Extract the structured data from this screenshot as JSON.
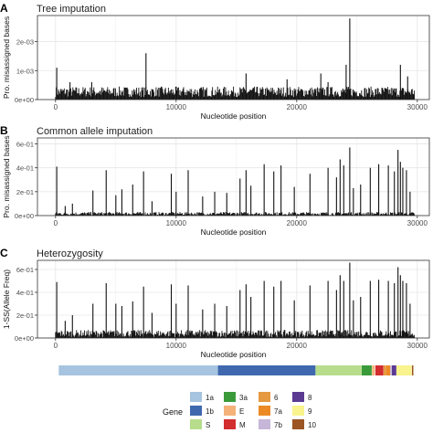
{
  "chart_data": [
    {
      "panel": "A",
      "type": "bar",
      "title": "Tree imputation",
      "xlabel": "Nucleotide position",
      "ylabel": "Pro. misassigned bases",
      "xlim": [
        -1500,
        31000
      ],
      "ylim": [
        0,
        0.0029
      ],
      "xticks": [
        0,
        10000,
        20000,
        30000
      ],
      "xtick_labels": [
        "0",
        "10000",
        "20000",
        "30000"
      ],
      "yticks": [
        0,
        0.001,
        0.002
      ],
      "ytick_labels": [
        "0e+00",
        "1e-03",
        "2e-03"
      ],
      "grid": true,
      "baseline": 0.0003,
      "noise_max": 0.00045,
      "peaks": [
        {
          "x": 100,
          "y": 0.0011
        },
        {
          "x": 1200,
          "y": 0.0006
        },
        {
          "x": 3000,
          "y": 0.0006
        },
        {
          "x": 7500,
          "y": 0.0016
        },
        {
          "x": 15800,
          "y": 0.0009
        },
        {
          "x": 19200,
          "y": 0.0007
        },
        {
          "x": 22000,
          "y": 0.0009
        },
        {
          "x": 22600,
          "y": 0.0006
        },
        {
          "x": 24100,
          "y": 0.0012
        },
        {
          "x": 24400,
          "y": 0.0028
        },
        {
          "x": 28600,
          "y": 0.0012
        },
        {
          "x": 29200,
          "y": 0.0008
        }
      ]
    },
    {
      "panel": "B",
      "type": "bar",
      "title": "Common allele imputation",
      "xlabel": "Nucleotide position",
      "ylabel": "Pro. misassigned bases",
      "xlim": [
        -1500,
        31000
      ],
      "ylim": [
        0,
        0.65
      ],
      "xticks": [
        0,
        10000,
        20000,
        30000
      ],
      "xtick_labels": [
        "0",
        "10000",
        "20000",
        "30000"
      ],
      "yticks": [
        0,
        0.2,
        0.4,
        0.6
      ],
      "ytick_labels": [
        "0e+00",
        "2e-01",
        "4e-01",
        "6e-01"
      ],
      "grid": true,
      "baseline": 0.01,
      "noise_max": 0.03,
      "peaks": [
        {
          "x": 100,
          "y": 0.41
        },
        {
          "x": 800,
          "y": 0.08
        },
        {
          "x": 1400,
          "y": 0.1
        },
        {
          "x": 3100,
          "y": 0.21
        },
        {
          "x": 4200,
          "y": 0.38
        },
        {
          "x": 5000,
          "y": 0.17
        },
        {
          "x": 5500,
          "y": 0.22
        },
        {
          "x": 6400,
          "y": 0.26
        },
        {
          "x": 7300,
          "y": 0.37
        },
        {
          "x": 8000,
          "y": 0.12
        },
        {
          "x": 9600,
          "y": 0.35
        },
        {
          "x": 10000,
          "y": 0.2
        },
        {
          "x": 11000,
          "y": 0.38
        },
        {
          "x": 12200,
          "y": 0.16
        },
        {
          "x": 13200,
          "y": 0.2
        },
        {
          "x": 14200,
          "y": 0.19
        },
        {
          "x": 15300,
          "y": 0.31
        },
        {
          "x": 15800,
          "y": 0.38
        },
        {
          "x": 16200,
          "y": 0.25
        },
        {
          "x": 17300,
          "y": 0.43
        },
        {
          "x": 18100,
          "y": 0.37
        },
        {
          "x": 18700,
          "y": 0.42
        },
        {
          "x": 19800,
          "y": 0.24
        },
        {
          "x": 21100,
          "y": 0.35
        },
        {
          "x": 22600,
          "y": 0.4
        },
        {
          "x": 23300,
          "y": 0.32
        },
        {
          "x": 23600,
          "y": 0.47
        },
        {
          "x": 23900,
          "y": 0.42
        },
        {
          "x": 24400,
          "y": 0.57
        },
        {
          "x": 24700,
          "y": 0.23
        },
        {
          "x": 25300,
          "y": 0.26
        },
        {
          "x": 26100,
          "y": 0.4
        },
        {
          "x": 26800,
          "y": 0.43
        },
        {
          "x": 27600,
          "y": 0.42
        },
        {
          "x": 28100,
          "y": 0.37
        },
        {
          "x": 28400,
          "y": 0.55
        },
        {
          "x": 28600,
          "y": 0.45
        },
        {
          "x": 28800,
          "y": 0.4
        },
        {
          "x": 29100,
          "y": 0.38
        },
        {
          "x": 29400,
          "y": 0.2
        }
      ]
    },
    {
      "panel": "C",
      "type": "bar",
      "title": "Heterozygosity",
      "xlabel": "Nucleotide position",
      "ylabel": "1-SS(Allele Freq)",
      "xlim": [
        -1500,
        31000
      ],
      "ylim": [
        0,
        0.68
      ],
      "xticks": [
        0,
        10000,
        20000,
        30000
      ],
      "xtick_labels": [
        "0",
        "10000",
        "20000",
        "30000"
      ],
      "yticks": [
        0,
        0.2,
        0.4,
        0.6
      ],
      "ytick_labels": [
        "0e+00",
        "2e-01",
        "4e-01",
        "6e-01"
      ],
      "grid": true,
      "baseline": 0.03,
      "noise_max": 0.07,
      "peaks": [
        {
          "x": 100,
          "y": 0.49
        },
        {
          "x": 800,
          "y": 0.15
        },
        {
          "x": 1400,
          "y": 0.2
        },
        {
          "x": 3100,
          "y": 0.3
        },
        {
          "x": 4200,
          "y": 0.48
        },
        {
          "x": 5000,
          "y": 0.3
        },
        {
          "x": 5500,
          "y": 0.28
        },
        {
          "x": 6400,
          "y": 0.32
        },
        {
          "x": 7300,
          "y": 0.45
        },
        {
          "x": 8000,
          "y": 0.22
        },
        {
          "x": 9600,
          "y": 0.47
        },
        {
          "x": 10000,
          "y": 0.3
        },
        {
          "x": 11000,
          "y": 0.46
        },
        {
          "x": 12200,
          "y": 0.25
        },
        {
          "x": 13200,
          "y": 0.3
        },
        {
          "x": 14200,
          "y": 0.28
        },
        {
          "x": 15300,
          "y": 0.42
        },
        {
          "x": 15800,
          "y": 0.47
        },
        {
          "x": 16200,
          "y": 0.36
        },
        {
          "x": 17300,
          "y": 0.5
        },
        {
          "x": 18100,
          "y": 0.45
        },
        {
          "x": 18700,
          "y": 0.5
        },
        {
          "x": 19800,
          "y": 0.33
        },
        {
          "x": 21100,
          "y": 0.46
        },
        {
          "x": 22600,
          "y": 0.5
        },
        {
          "x": 23300,
          "y": 0.42
        },
        {
          "x": 23600,
          "y": 0.55
        },
        {
          "x": 23900,
          "y": 0.5
        },
        {
          "x": 24400,
          "y": 0.66
        },
        {
          "x": 24700,
          "y": 0.33
        },
        {
          "x": 25300,
          "y": 0.36
        },
        {
          "x": 26100,
          "y": 0.5
        },
        {
          "x": 26800,
          "y": 0.51
        },
        {
          "x": 27600,
          "y": 0.5
        },
        {
          "x": 28100,
          "y": 0.48
        },
        {
          "x": 28400,
          "y": 0.62
        },
        {
          "x": 28600,
          "y": 0.55
        },
        {
          "x": 28800,
          "y": 0.5
        },
        {
          "x": 29100,
          "y": 0.48
        },
        {
          "x": 29400,
          "y": 0.3
        }
      ]
    }
  ],
  "genome_bar": [
    {
      "gene": "1a",
      "start": 266,
      "end": 13468
    },
    {
      "gene": "1b",
      "start": 13468,
      "end": 21555
    },
    {
      "gene": "S",
      "start": 21563,
      "end": 25384
    },
    {
      "gene": "3a",
      "start": 25393,
      "end": 26220
    },
    {
      "gene": "E",
      "start": 26245,
      "end": 26472
    },
    {
      "gene": "M",
      "start": 26523,
      "end": 27191
    },
    {
      "gene": "6",
      "start": 27202,
      "end": 27387
    },
    {
      "gene": "7a",
      "start": 27394,
      "end": 27759
    },
    {
      "gene": "7b",
      "start": 27756,
      "end": 27887
    },
    {
      "gene": "8",
      "start": 27894,
      "end": 28259
    },
    {
      "gene": "9",
      "start": 28274,
      "end": 29533
    },
    {
      "gene": "10",
      "start": 29558,
      "end": 29674
    }
  ],
  "legend": {
    "title": "Gene",
    "items": [
      {
        "label": "1a",
        "color": "#a6c4df"
      },
      {
        "label": "1b",
        "color": "#3f68ae"
      },
      {
        "label": "S",
        "color": "#b6dc8c"
      },
      {
        "label": "3a",
        "color": "#3a9a3a"
      },
      {
        "label": "E",
        "color": "#f4b27a"
      },
      {
        "label": "M",
        "color": "#d22d2f"
      },
      {
        "label": "6",
        "color": "#e59940"
      },
      {
        "label": "7a",
        "color": "#ec8a25"
      },
      {
        "label": "7b",
        "color": "#c6b6d8"
      },
      {
        "label": "8",
        "color": "#5b3a92"
      },
      {
        "label": "9",
        "color": "#f9f48d"
      },
      {
        "label": "10",
        "color": "#9c5524"
      }
    ]
  },
  "colors": {
    "panel_bg": "#ffffff",
    "grid": "#e6e6e6",
    "bars": "#111111",
    "axis_text": "#4d4d4d"
  }
}
